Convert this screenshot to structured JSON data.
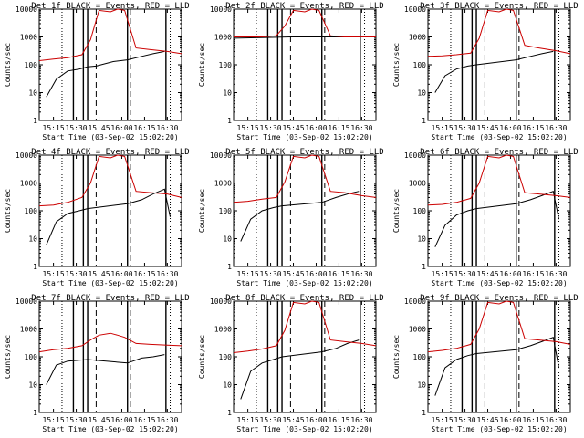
{
  "chart_data": [
    {
      "type": "line",
      "title": "Det 1f  BLACK = Events, RED = LLD",
      "xlabel": "Start Time (03-Sep-02 15:02:20)",
      "ylabel": "Counts/sec",
      "x_ticks": [
        "15:15",
        "15:30",
        "15:45",
        "16:00",
        "16:15",
        "16:30"
      ],
      "y_ticks": [
        "1",
        "10",
        "100",
        "1000",
        "10000"
      ],
      "yscale": "log",
      "ylim": [
        1,
        10000
      ],
      "series": [
        {
          "name": "Events",
          "color": "#000000",
          "x": [
            0.05,
            0.12,
            0.2,
            0.28,
            0.34,
            0.4,
            0.52,
            0.62,
            0.72,
            0.8,
            0.88
          ],
          "values": [
            7,
            30,
            60,
            70,
            85,
            90,
            130,
            150,
            200,
            250,
            300
          ]
        },
        {
          "name": "LLD",
          "color": "#cc0000",
          "x": [
            0.0,
            0.1,
            0.2,
            0.3,
            0.36,
            0.42,
            0.5,
            0.55,
            0.6,
            0.68,
            0.78,
            0.9,
            1.0
          ],
          "values": [
            140,
            160,
            180,
            230,
            800,
            9000,
            8000,
            10000,
            9000,
            400,
            350,
            300,
            250
          ]
        }
      ]
    },
    {
      "type": "line",
      "title": "Det 2f  BLACK = Events, RED = LLD",
      "xlabel": "Start Time (03-Sep-02 15:02:20)",
      "ylabel": "Counts/sec",
      "x_ticks": [
        "15:15",
        "15:30",
        "15:45",
        "16:00",
        "16:15",
        "16:30"
      ],
      "y_ticks": [
        "1",
        "10",
        "100",
        "1000",
        "10000"
      ],
      "yscale": "log",
      "ylim": [
        1,
        10000
      ],
      "series": [
        {
          "name": "Events",
          "color": "#000000",
          "x": [
            0.0,
            0.2,
            0.4,
            0.6,
            0.8,
            1.0
          ],
          "values": [
            900,
            950,
            1000,
            1000,
            1000,
            1000
          ]
        },
        {
          "name": "LLD",
          "color": "#cc0000",
          "x": [
            0.0,
            0.2,
            0.3,
            0.36,
            0.42,
            0.5,
            0.55,
            0.6,
            0.68,
            0.78,
            0.9,
            1.0
          ],
          "values": [
            1000,
            1000,
            1100,
            2500,
            9000,
            8000,
            10000,
            9000,
            1100,
            1000,
            1000,
            1000
          ]
        }
      ]
    },
    {
      "type": "line",
      "title": "Det 3f  BLACK = Events, RED = LLD",
      "xlabel": "Start Time (03-Sep-02 15:02:20)",
      "ylabel": "Counts/sec",
      "x_ticks": [
        "15:15",
        "15:30",
        "15:45",
        "16:00",
        "16:15",
        "16:30"
      ],
      "y_ticks": [
        "1",
        "10",
        "100",
        "1000",
        "10000"
      ],
      "yscale": "log",
      "ylim": [
        1,
        10000
      ],
      "series": [
        {
          "name": "Events",
          "color": "#000000",
          "x": [
            0.05,
            0.12,
            0.2,
            0.28,
            0.34,
            0.62,
            0.72,
            0.8,
            0.88
          ],
          "values": [
            10,
            40,
            70,
            90,
            100,
            150,
            200,
            250,
            300
          ]
        },
        {
          "name": "LLD",
          "color": "#cc0000",
          "x": [
            0.0,
            0.1,
            0.2,
            0.3,
            0.36,
            0.42,
            0.5,
            0.55,
            0.6,
            0.68,
            0.78,
            0.9,
            1.0
          ],
          "values": [
            200,
            210,
            230,
            260,
            900,
            9000,
            8000,
            10000,
            9000,
            500,
            400,
            320,
            250
          ]
        }
      ]
    },
    {
      "type": "line",
      "title": "Det 4f  BLACK = Events, RED = LLD",
      "xlabel": "Start Time (03-Sep-02 15:02:20)",
      "ylabel": "Counts/sec",
      "x_ticks": [
        "15:15",
        "15:30",
        "15:45",
        "16:00",
        "16:15",
        "16:30"
      ],
      "y_ticks": [
        "1",
        "10",
        "100",
        "1000",
        "10000"
      ],
      "yscale": "log",
      "ylim": [
        1,
        10000
      ],
      "series": [
        {
          "name": "Events",
          "color": "#000000",
          "x": [
            0.05,
            0.12,
            0.2,
            0.28,
            0.34,
            0.62,
            0.72,
            0.8,
            0.88,
            0.92
          ],
          "values": [
            6,
            40,
            80,
            100,
            120,
            180,
            250,
            400,
            600,
            60
          ]
        },
        {
          "name": "LLD",
          "color": "#cc0000",
          "x": [
            0.0,
            0.1,
            0.2,
            0.3,
            0.36,
            0.42,
            0.5,
            0.55,
            0.6,
            0.68,
            0.78,
            0.9,
            1.0
          ],
          "values": [
            150,
            160,
            200,
            300,
            1000,
            9000,
            8000,
            10000,
            9000,
            500,
            450,
            400,
            300
          ]
        }
      ]
    },
    {
      "type": "line",
      "title": "Det 5f  BLACK = Events, RED = LLD",
      "xlabel": "Start Time (03-Sep-02 15:02:20)",
      "ylabel": "Counts/sec",
      "x_ticks": [
        "15:15",
        "15:30",
        "15:45",
        "16:00",
        "16:15",
        "16:30"
      ],
      "y_ticks": [
        "1",
        "10",
        "100",
        "1000",
        "10000"
      ],
      "yscale": "log",
      "ylim": [
        1,
        10000
      ],
      "series": [
        {
          "name": "Events",
          "color": "#000000",
          "x": [
            0.05,
            0.12,
            0.2,
            0.28,
            0.34,
            0.62,
            0.72,
            0.8,
            0.88
          ],
          "values": [
            8,
            50,
            100,
            130,
            150,
            200,
            300,
            400,
            500
          ]
        },
        {
          "name": "LLD",
          "color": "#cc0000",
          "x": [
            0.0,
            0.1,
            0.2,
            0.3,
            0.36,
            0.42,
            0.5,
            0.55,
            0.6,
            0.68,
            0.78,
            0.9,
            1.0
          ],
          "values": [
            200,
            220,
            260,
            300,
            1100,
            9000,
            8000,
            10000,
            9000,
            500,
            450,
            350,
            300
          ]
        }
      ]
    },
    {
      "type": "line",
      "title": "Det 6f  BLACK = Events, RED = LLD",
      "xlabel": "Start Time (03-Sep-02 15:02:20)",
      "ylabel": "Counts/sec",
      "x_ticks": [
        "15:15",
        "15:30",
        "15:45",
        "16:00",
        "16:15",
        "16:30"
      ],
      "y_ticks": [
        "1",
        "10",
        "100",
        "1000",
        "10000"
      ],
      "yscale": "log",
      "ylim": [
        1,
        10000
      ],
      "series": [
        {
          "name": "Events",
          "color": "#000000",
          "x": [
            0.05,
            0.12,
            0.2,
            0.28,
            0.34,
            0.62,
            0.72,
            0.8,
            0.88,
            0.92
          ],
          "values": [
            5,
            30,
            70,
            100,
            120,
            180,
            250,
            350,
            500,
            50
          ]
        },
        {
          "name": "LLD",
          "color": "#cc0000",
          "x": [
            0.0,
            0.1,
            0.2,
            0.3,
            0.36,
            0.42,
            0.5,
            0.55,
            0.6,
            0.68,
            0.78,
            0.9,
            1.0
          ],
          "values": [
            160,
            170,
            200,
            280,
            1000,
            9000,
            8000,
            10000,
            9000,
            450,
            400,
            350,
            300
          ]
        }
      ]
    },
    {
      "type": "line",
      "title": "Det 7f  BLACK = Events, RED = LLD",
      "xlabel": "Start Time (03-Sep-02 15:02:20)",
      "ylabel": "Counts/sec",
      "x_ticks": [
        "15:15",
        "15:30",
        "15:45",
        "16:00",
        "16:15",
        "16:30"
      ],
      "y_ticks": [
        "1",
        "10",
        "100",
        "1000",
        "10000"
      ],
      "yscale": "log",
      "ylim": [
        1,
        10000
      ],
      "series": [
        {
          "name": "Events",
          "color": "#000000",
          "x": [
            0.05,
            0.12,
            0.2,
            0.28,
            0.34,
            0.62,
            0.72,
            0.8,
            0.88
          ],
          "values": [
            10,
            50,
            70,
            75,
            80,
            60,
            90,
            100,
            120
          ]
        },
        {
          "name": "LLD",
          "color": "#cc0000",
          "x": [
            0.0,
            0.1,
            0.2,
            0.3,
            0.36,
            0.42,
            0.5,
            0.55,
            0.6,
            0.68,
            0.78,
            0.9,
            1.0
          ],
          "values": [
            150,
            180,
            200,
            250,
            400,
            600,
            700,
            600,
            500,
            300,
            280,
            260,
            250
          ]
        }
      ]
    },
    {
      "type": "line",
      "title": "Det 8f  BLACK = Events, RED = LLD",
      "xlabel": "Start Time (03-Sep-02 15:02:20)",
      "ylabel": "Counts/sec",
      "x_ticks": [
        "15:15",
        "15:30",
        "15:45",
        "16:00",
        "16:15",
        "16:30"
      ],
      "y_ticks": [
        "1",
        "10",
        "100",
        "1000",
        "10000"
      ],
      "yscale": "log",
      "ylim": [
        1,
        10000
      ],
      "series": [
        {
          "name": "Events",
          "color": "#000000",
          "x": [
            0.05,
            0.12,
            0.2,
            0.28,
            0.34,
            0.62,
            0.72,
            0.8,
            0.88
          ],
          "values": [
            3,
            30,
            60,
            80,
            100,
            150,
            200,
            300,
            400
          ]
        },
        {
          "name": "LLD",
          "color": "#cc0000",
          "x": [
            0.0,
            0.1,
            0.2,
            0.3,
            0.36,
            0.42,
            0.5,
            0.55,
            0.6,
            0.68,
            0.78,
            0.9,
            1.0
          ],
          "values": [
            140,
            160,
            190,
            250,
            900,
            9000,
            8000,
            10000,
            9000,
            400,
            350,
            300,
            250
          ]
        }
      ]
    },
    {
      "type": "line",
      "title": "Det 9f  BLACK = Events, RED = LLD",
      "xlabel": "Start Time (03-Sep-02 15:02:20)",
      "ylabel": "Counts/sec",
      "x_ticks": [
        "15:15",
        "15:30",
        "15:45",
        "16:00",
        "16:15",
        "16:30"
      ],
      "y_ticks": [
        "1",
        "10",
        "100",
        "1000",
        "10000"
      ],
      "yscale": "log",
      "ylim": [
        1,
        10000
      ],
      "series": [
        {
          "name": "Events",
          "color": "#000000",
          "x": [
            0.05,
            0.12,
            0.2,
            0.28,
            0.34,
            0.62,
            0.72,
            0.8,
            0.88,
            0.92
          ],
          "values": [
            4,
            40,
            80,
            110,
            130,
            180,
            250,
            350,
            500,
            40
          ]
        },
        {
          "name": "LLD",
          "color": "#cc0000",
          "x": [
            0.0,
            0.1,
            0.2,
            0.3,
            0.36,
            0.42,
            0.5,
            0.55,
            0.6,
            0.68,
            0.78,
            0.9,
            1.0
          ],
          "values": [
            150,
            170,
            200,
            280,
            1000,
            9000,
            8000,
            10000,
            9000,
            450,
            400,
            350,
            280
          ]
        }
      ]
    }
  ]
}
